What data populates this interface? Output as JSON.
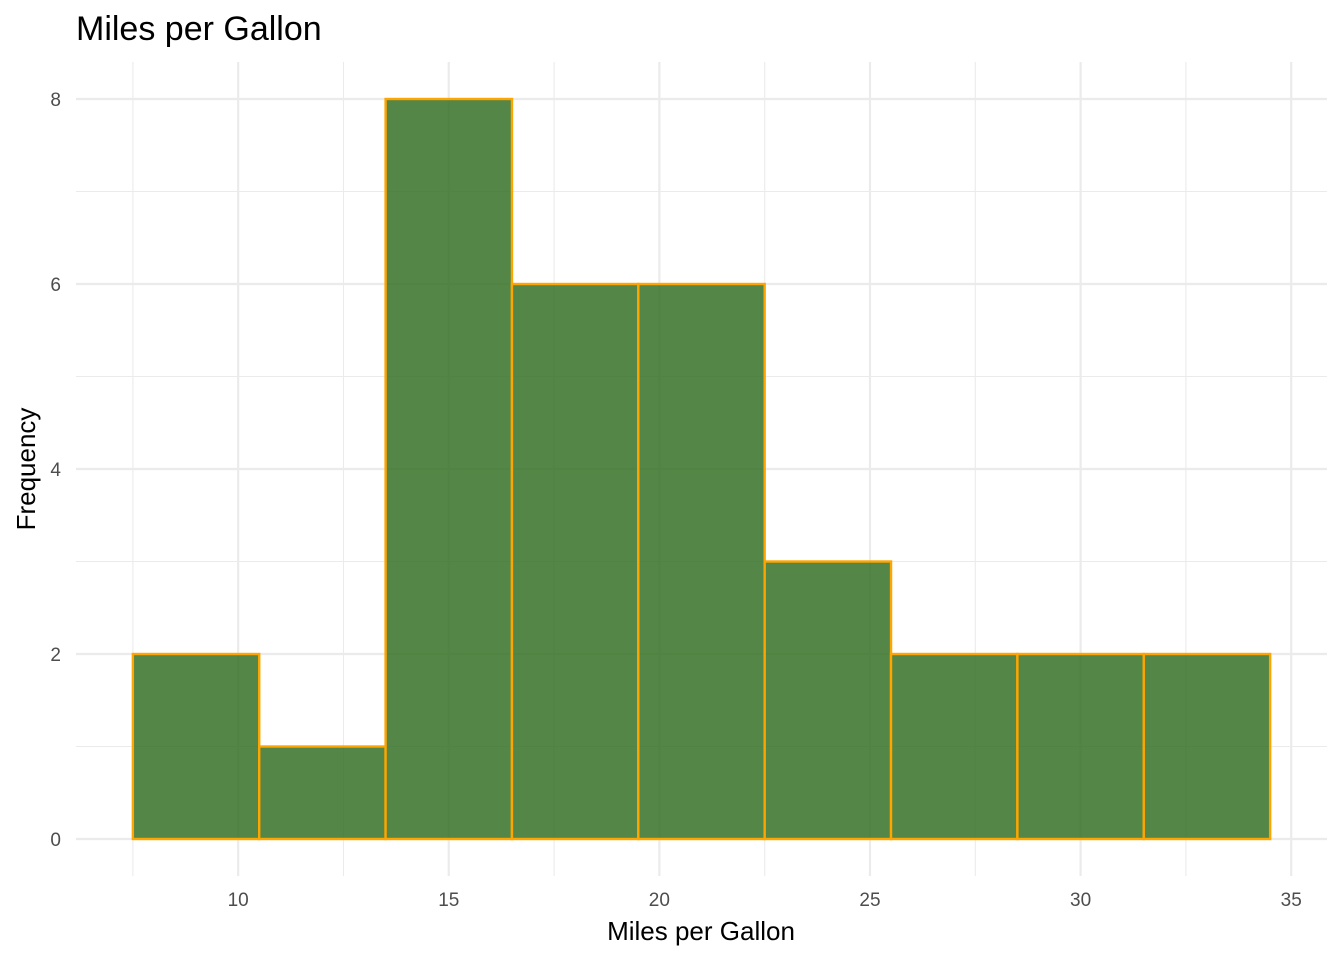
{
  "chart_data": {
    "type": "bar",
    "title": "Miles per Gallon",
    "xlabel": "Miles per Gallon",
    "ylabel": "Frequency",
    "bins": [
      {
        "x0": 7.5,
        "x1": 10.5,
        "count": 2
      },
      {
        "x0": 10.5,
        "x1": 13.5,
        "count": 1
      },
      {
        "x0": 13.5,
        "x1": 16.5,
        "count": 8
      },
      {
        "x0": 16.5,
        "x1": 19.5,
        "count": 6
      },
      {
        "x0": 19.5,
        "x1": 22.5,
        "count": 6
      },
      {
        "x0": 22.5,
        "x1": 25.5,
        "count": 3
      },
      {
        "x0": 25.5,
        "x1": 28.5,
        "count": 2
      },
      {
        "x0": 28.5,
        "x1": 31.5,
        "count": 2
      },
      {
        "x0": 31.5,
        "x1": 34.5,
        "count": 2
      }
    ],
    "xlim": [
      6.15,
      35.85
    ],
    "ylim": [
      -0.4,
      8.4
    ],
    "x_ticks": [
      10,
      15,
      20,
      25,
      30,
      35
    ],
    "x_tick_labels": [
      "10",
      "15",
      "20",
      "25",
      "30",
      "35"
    ],
    "y_ticks": [
      0,
      2,
      4,
      6,
      8
    ],
    "y_tick_labels": [
      "0",
      "2",
      "4",
      "6",
      "8"
    ],
    "grid": true,
    "legend": "none",
    "colors": {
      "fill": "#2e6b1e",
      "outline": "#ffa500",
      "grid": "#ebebeb"
    }
  }
}
